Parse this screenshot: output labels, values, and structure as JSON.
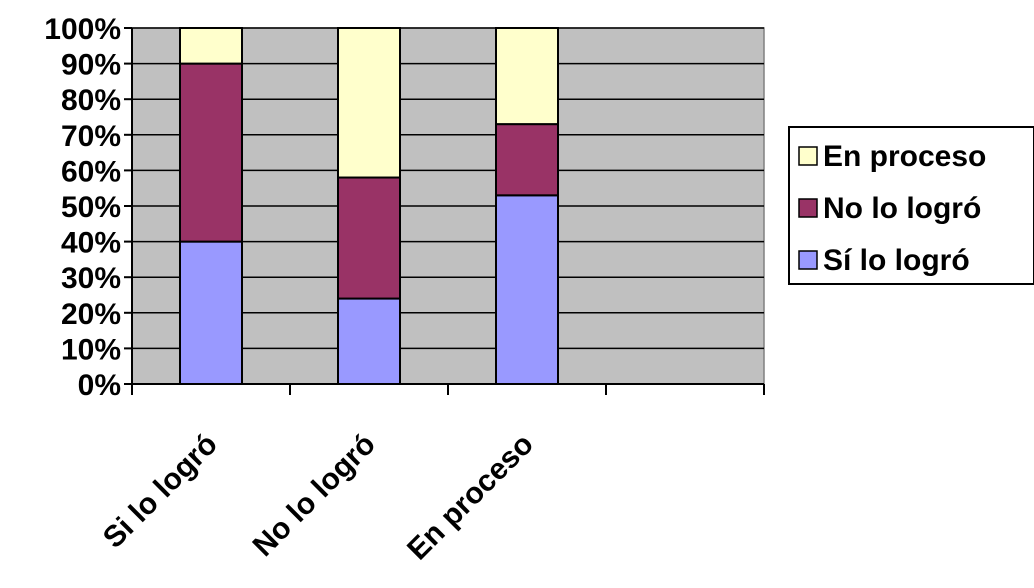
{
  "chart_data": {
    "type": "bar",
    "stacked": true,
    "percent_axis": true,
    "categories": [
      "Si lo logró",
      "No lo logró",
      "En proceso",
      ""
    ],
    "series": [
      {
        "name": "Sí lo logró",
        "values": [
          40,
          24,
          53,
          0
        ],
        "color": "#9999ff"
      },
      {
        "name": "No lo logró",
        "values": [
          50,
          34,
          20,
          0
        ],
        "color": "#993366"
      },
      {
        "name": "En proceso",
        "values": [
          10,
          42,
          27,
          0
        ],
        "color": "#ffffcc"
      }
    ],
    "y_ticks": [
      "0%",
      "10%",
      "20%",
      "30%",
      "40%",
      "50%",
      "60%",
      "70%",
      "80%",
      "90%",
      "100%"
    ],
    "ylim": [
      0,
      100
    ],
    "grid": true,
    "plot_background": "#c0c0c0",
    "legend": {
      "placement": "right",
      "entries": [
        "En proceso",
        "No lo logró",
        "Sí lo logró"
      ]
    }
  }
}
